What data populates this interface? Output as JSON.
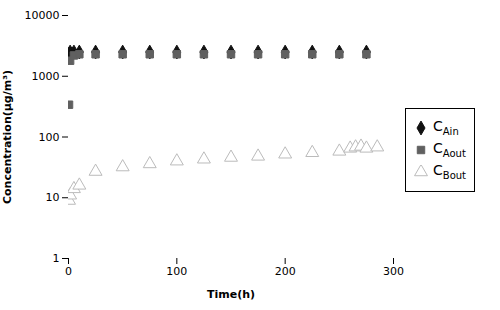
{
  "chart_data": {
    "type": "scatter",
    "xlabel": "Time(h)",
    "ylabel": "Concentration(μg/m³)",
    "xlim": [
      0,
      300
    ],
    "ylim": [
      1,
      10000
    ],
    "xticks": [
      0,
      100,
      200,
      300
    ],
    "yticks": [
      1,
      10,
      100,
      1000,
      10000
    ],
    "log": "y",
    "grid": false,
    "legend": "center right",
    "series": [
      {
        "name": "CAin",
        "color": "#111111",
        "marker": "diamond",
        "x": [
          0.5,
          1.5,
          5,
          10,
          25,
          50,
          75,
          100,
          125,
          150,
          175,
          200,
          225,
          250,
          275
        ],
        "values": [
          2300,
          2500,
          2500,
          2500,
          2500,
          2500,
          2500,
          2500,
          2500,
          2500,
          2500,
          2500,
          2500,
          2500,
          2500
        ]
      },
      {
        "name": "CAout",
        "color": "#606060",
        "marker": "square",
        "x": [
          0.5,
          1.5,
          5,
          10,
          25,
          50,
          75,
          100,
          125,
          150,
          175,
          200,
          225,
          250,
          275
        ],
        "values": [
          340,
          1800,
          2200,
          2300,
          2300,
          2300,
          2300,
          2300,
          2300,
          2300,
          2300,
          2300,
          2300,
          2300,
          2300
        ]
      },
      {
        "name": "CBout",
        "color": "#bbbbbb",
        "marker": "triangle-open",
        "x": [
          0.5,
          1.5,
          5,
          10,
          25,
          50,
          75,
          100,
          125,
          150,
          175,
          200,
          225,
          250,
          260,
          265,
          270,
          275,
          285
        ],
        "values": [
          9,
          11,
          14,
          16,
          27,
          32,
          36,
          40,
          43,
          46,
          48,
          52,
          55,
          58,
          65,
          68,
          70,
          65,
          68
        ]
      }
    ]
  }
}
